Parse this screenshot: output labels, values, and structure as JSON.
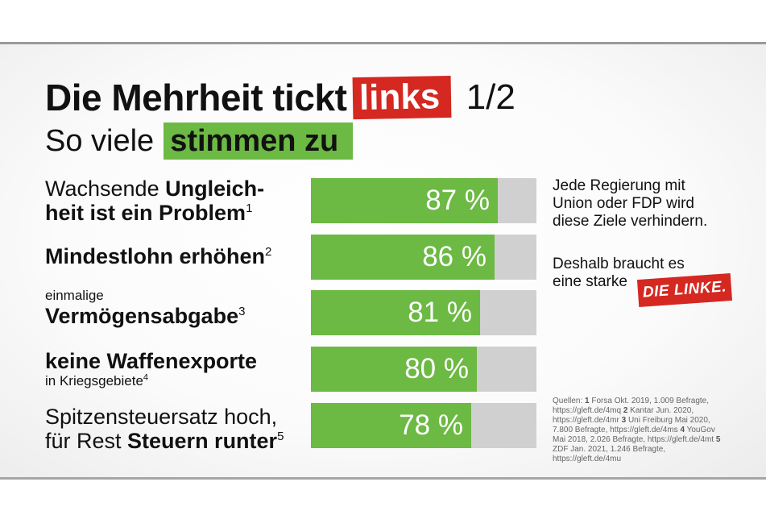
{
  "title": {
    "part1": "Die Mehrheit tickt",
    "highlight": "links",
    "page": "1/2"
  },
  "subtitle": {
    "part1": "So viele",
    "highlight": "stimmen zu"
  },
  "colors": {
    "green": "#6cb944",
    "red": "#d42821",
    "bar_background": "#d0d0d0"
  },
  "chart_data": {
    "type": "bar",
    "orientation": "horizontal",
    "categories": [
      "Wachsende Ungleichheit ist ein Problem",
      "Mindestlohn erhöhen",
      "einmalige Vermögensabgabe",
      "keine Waffenexporte in Kriegsgebiete",
      "Spitzensteuersatz hoch, für Rest Steuern runter"
    ],
    "values": [
      87,
      86,
      81,
      80,
      78
    ],
    "value_labels": [
      "87 %",
      "86 %",
      "81 %",
      "80 %",
      "78 %"
    ],
    "xlim": [
      0,
      100
    ],
    "title": "Die Mehrheit tickt links 1/2",
    "subtitle": "So viele stimmen zu"
  },
  "rows": [
    {
      "regular": "Wachsende ",
      "bold": "Ungleich-",
      "line2_bold": "heit ist ein Problem",
      "sup": "1"
    },
    {
      "bold": "Mindestlohn erhöhen",
      "sup": "2"
    },
    {
      "small": "einmalige",
      "bold": "Vermögensabgabe",
      "sup": "3"
    },
    {
      "bold": "keine Waffenexporte",
      "small": "in Kriegsgebiete",
      "sup": "4"
    },
    {
      "line1": "Spitzensteuersatz hoch,",
      "regular": "für Rest ",
      "bold": "Steuern runter",
      "sup": "5"
    }
  ],
  "side_text": {
    "p1": [
      "Jede Regierung mit",
      "Union oder FDP wird",
      "diese Ziele verhindern."
    ],
    "p2": [
      "Deshalb braucht es",
      "eine starke"
    ]
  },
  "logo_text": "DIE LINKE.",
  "sources": {
    "prefix": "Quellen: ",
    "items": [
      {
        "n": "1",
        "text": " Forsa Okt. 2019, 1.009 Befragte, https://gleft.de/4mq "
      },
      {
        "n": "2",
        "text": " Kantar Jun. 2020, https://gleft.de/4mr "
      },
      {
        "n": "3",
        "text": " Uni Freiburg Mai 2020, 7.800 Befragte, https://gleft.de/4ms "
      },
      {
        "n": "4",
        "text": " YouGov Mai 2018, 2.026 Befragte, https://gleft.de/4mt "
      },
      {
        "n": "5",
        "text": " ZDF Jan. 2021, 1.246 Befragte, https://gleft.de/4mu"
      }
    ]
  }
}
